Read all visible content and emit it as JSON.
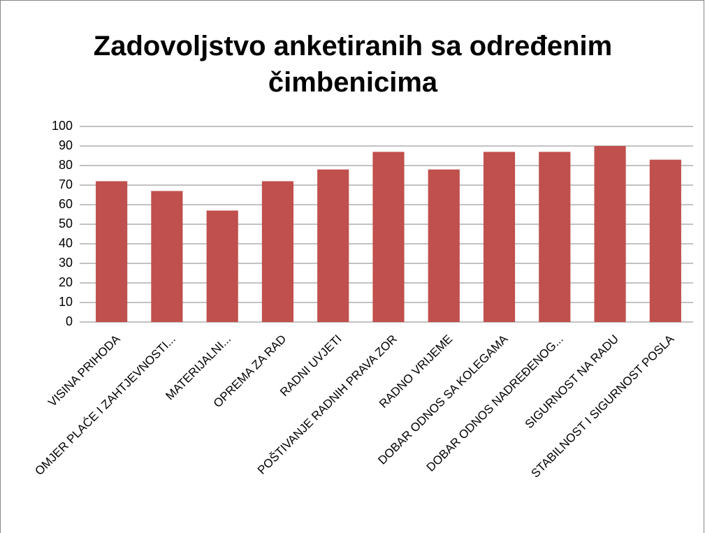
{
  "chart_data": {
    "type": "bar",
    "title": "Zadovoljstvo anketiranih sa određenim čimbenicima",
    "categories": [
      "VISINA PRIHODA",
      "OMJER PLAĆE I ZAHTJEVNOSTI...",
      "MATERIJALNI...",
      "OPREMA ZA RAD",
      "RADNI UVJETI",
      "POŠTIVANJE RADNIH PRAVA ZOR",
      "RADNO VRIJEME",
      "DOBAR ODNOS SA KOLEGAMA",
      "DOBAR ODNOS NADREĐENOG...",
      "SIGURNOST NA RADU",
      "STABILNOST I SIGURNOST POSLA"
    ],
    "values": [
      72,
      67,
      57,
      72,
      78,
      87,
      78,
      87,
      87,
      90,
      83
    ],
    "color": "#c0504d",
    "ylim": [
      0,
      100
    ],
    "yticks": [
      0,
      10,
      20,
      30,
      40,
      50,
      60,
      70,
      80,
      90,
      100
    ],
    "grid": true
  }
}
